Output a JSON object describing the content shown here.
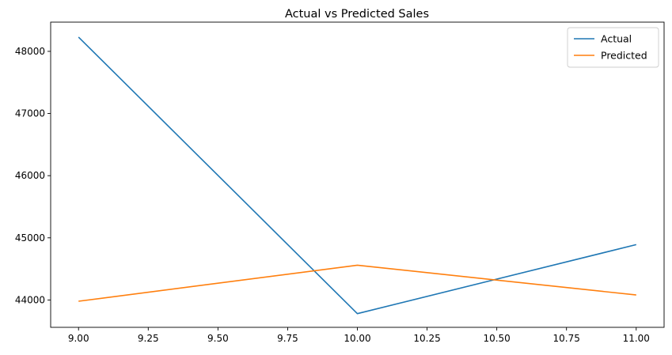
{
  "chart_data": {
    "type": "line",
    "title": "Actual vs Predicted Sales",
    "xlabel": "",
    "ylabel": "",
    "x": [
      9.0,
      10.0,
      11.0
    ],
    "xlim": [
      8.9,
      11.1
    ],
    "ylim": [
      43560,
      48470
    ],
    "xticks": [
      9.0,
      9.25,
      9.5,
      9.75,
      10.0,
      10.25,
      10.5,
      10.75,
      11.0
    ],
    "xtick_labels": [
      "9.00",
      "9.25",
      "9.50",
      "9.75",
      "10.00",
      "10.25",
      "10.50",
      "10.75",
      "11.00"
    ],
    "yticks": [
      44000,
      45000,
      46000,
      47000,
      48000
    ],
    "ytick_labels": [
      "44000",
      "45000",
      "46000",
      "47000",
      "48000"
    ],
    "grid": false,
    "legend_position": "top-right",
    "series": [
      {
        "name": "Actual",
        "color": "#1f77b4",
        "values": [
          48230,
          43780,
          44890
        ]
      },
      {
        "name": "Predicted",
        "color": "#ff7f0e",
        "values": [
          43980,
          44560,
          44080
        ]
      }
    ]
  }
}
